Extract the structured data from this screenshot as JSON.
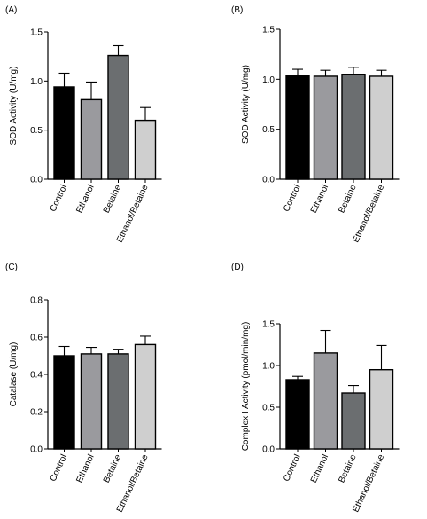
{
  "chart_data": [
    {
      "panel_label": "(A)",
      "type": "bar",
      "title": "",
      "xlabel": "",
      "ylabel": "SOD Activity (U/mg)",
      "categories": [
        "Control",
        "Ethanol",
        "Betaine",
        "Ethanol/Betaine"
      ],
      "values": [
        0.94,
        0.81,
        1.26,
        0.6
      ],
      "errors": [
        0.14,
        0.18,
        0.1,
        0.13
      ],
      "ylim": [
        0,
        1.5
      ],
      "yticks": [
        "0.0",
        "0.5",
        "1.0",
        "1.5"
      ],
      "ytick_values": [
        0,
        0.5,
        1.0,
        1.5
      ],
      "colors": [
        "#000000",
        "#9a9a9e",
        "#6b6e70",
        "#cfcfcf"
      ],
      "grid": false,
      "legend": "none"
    },
    {
      "panel_label": "(B)",
      "type": "bar",
      "title": "",
      "xlabel": "",
      "ylabel": "SOD Activity (U/mg)",
      "categories": [
        "Control",
        "Ethanol",
        "Betaine",
        "Ethanol/Betaine"
      ],
      "values": [
        1.04,
        1.03,
        1.05,
        1.03
      ],
      "errors": [
        0.06,
        0.06,
        0.07,
        0.06
      ],
      "ylim": [
        0,
        1.5
      ],
      "yticks": [
        "0.0",
        "0.5",
        "1.0",
        "1.5"
      ],
      "ytick_values": [
        0,
        0.5,
        1.0,
        1.5
      ],
      "colors": [
        "#000000",
        "#9a9a9e",
        "#6b6e70",
        "#cfcfcf"
      ],
      "grid": false,
      "legend": "none"
    },
    {
      "panel_label": "(C)",
      "type": "bar",
      "title": "",
      "xlabel": "",
      "ylabel": "Catalase (U/mg)",
      "categories": [
        "Control",
        "Ethanol",
        "Betaine",
        "Ethanol/Betaine"
      ],
      "values": [
        0.5,
        0.51,
        0.51,
        0.56
      ],
      "errors": [
        0.05,
        0.035,
        0.025,
        0.045
      ],
      "ylim": [
        0,
        0.8
      ],
      "yticks": [
        "0.0",
        "0.2",
        "0.4",
        "0.6",
        "0.8"
      ],
      "ytick_values": [
        0,
        0.2,
        0.4,
        0.6,
        0.8
      ],
      "colors": [
        "#000000",
        "#9a9a9e",
        "#6b6e70",
        "#cfcfcf"
      ],
      "grid": false,
      "legend": "none"
    },
    {
      "panel_label": "(D)",
      "type": "bar",
      "title": "",
      "xlabel": "",
      "ylabel": "Complex I Activity (pmol/min/mg)",
      "categories": [
        "Control",
        "Ethanol",
        "Betaine",
        "Ethanol/Betaine"
      ],
      "values": [
        0.83,
        1.15,
        0.67,
        0.95
      ],
      "errors": [
        0.04,
        0.27,
        0.09,
        0.29
      ],
      "ylim": [
        0,
        1.5
      ],
      "yticks": [
        "0.0",
        "0.5",
        "1.0",
        "1.5"
      ],
      "ytick_values": [
        0,
        0.5,
        1.0,
        1.5
      ],
      "colors": [
        "#000000",
        "#9a9a9e",
        "#6b6e70",
        "#cfcfcf"
      ],
      "grid": false,
      "legend": "none"
    }
  ]
}
